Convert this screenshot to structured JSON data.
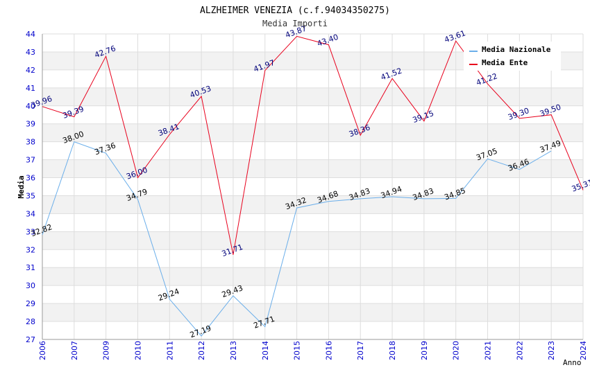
{
  "chart_data": {
    "type": "line",
    "title": "ALZHEIMER VENEZIA (c.f.94034350275)",
    "subtitle": "Media Importi",
    "xlabel": "Anno",
    "ylabel": "Media",
    "ylim": [
      27,
      44
    ],
    "yticks": [
      "27",
      "28",
      "29",
      "30",
      "31",
      "32",
      "33",
      "34",
      "35",
      "36",
      "37",
      "38",
      "39",
      "40",
      "41",
      "42",
      "43",
      "44"
    ],
    "categories": [
      "2006",
      "2007",
      "2009",
      "2010",
      "2011",
      "2012",
      "2013",
      "2014",
      "2015",
      "2016",
      "2017",
      "2018",
      "2019",
      "2020",
      "2021",
      "2022",
      "2023",
      "2024"
    ],
    "grid": true,
    "legend_position": "top-right",
    "series": [
      {
        "name": "Media Nazionale",
        "color": "#6aaeea",
        "values": [
          32.82,
          38.0,
          37.36,
          34.79,
          29.24,
          27.19,
          29.43,
          27.71,
          34.32,
          34.68,
          34.83,
          34.94,
          34.83,
          34.85,
          37.05,
          36.46,
          37.49,
          null
        ],
        "labels": [
          "32.82",
          "38.00",
          "37.36",
          "34.79",
          "29.24",
          "27.19",
          "29.43",
          "27.71",
          "34.32",
          "34.68",
          "34.83",
          "34.94",
          "34.83",
          "34.85",
          "37.05",
          "36.46",
          "37.49",
          ""
        ]
      },
      {
        "name": "Media Ente",
        "color": "#e8001c",
        "values": [
          39.96,
          39.39,
          42.76,
          36.0,
          38.41,
          40.53,
          31.71,
          41.97,
          43.87,
          43.4,
          38.36,
          41.52,
          39.15,
          43.61,
          41.22,
          39.3,
          39.5,
          35.31
        ],
        "labels": [
          "39.96",
          "39.39",
          "42.76",
          "36.00",
          "38.41",
          "40.53",
          "31.71",
          "41.97",
          "43.87",
          "43.40",
          "38.36",
          "41.52",
          "39.15",
          "43.61",
          "41.22",
          "39.30",
          "39.50",
          "35.31"
        ]
      }
    ],
    "colors": {
      "axis_text": "#0000cc",
      "ente_label": "#00007a",
      "naz_label": "#000000",
      "band": "#f2f2f2",
      "grid": "#dddddd"
    }
  }
}
